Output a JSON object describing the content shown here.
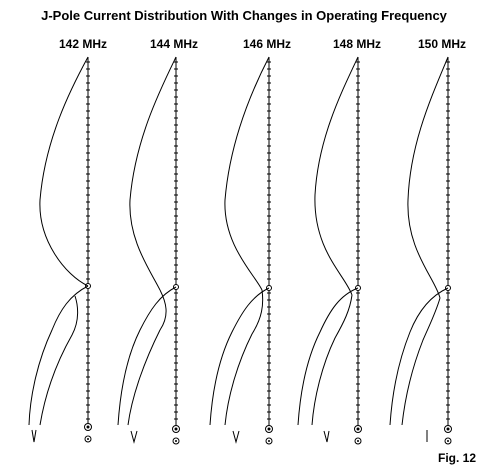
{
  "title": "J-Pole Current Distribution With Changes in Operating Frequency",
  "figure_label": "Fig. 12",
  "panels": [
    {
      "frequency_label": "142 MHz"
    },
    {
      "frequency_label": "144 MHz"
    },
    {
      "frequency_label": "146 MHz"
    },
    {
      "frequency_label": "148 MHz"
    },
    {
      "frequency_label": "150 MHz"
    }
  ],
  "colors": {
    "ink": "#000000",
    "background": "#ffffff"
  }
}
